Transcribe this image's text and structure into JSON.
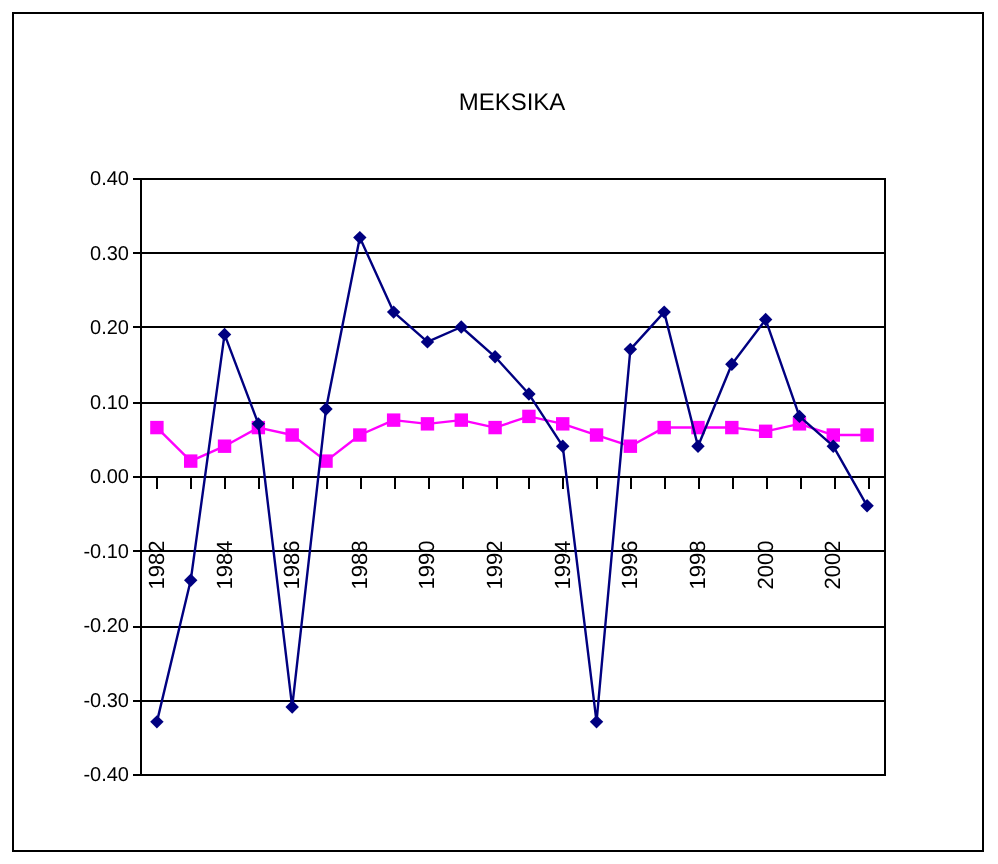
{
  "chart_data": {
    "type": "line",
    "title": "MEKSIKA",
    "categories": [
      "1982",
      null,
      "1984",
      null,
      "1986",
      null,
      "1988",
      null,
      "1990",
      null,
      "1992",
      null,
      "1994",
      null,
      "1996",
      null,
      "1998",
      null,
      "2000",
      null,
      "2002",
      null
    ],
    "series": [
      {
        "color": "#000080",
        "marker": "diamond",
        "values": [
          -0.33,
          -0.14,
          0.19,
          0.07,
          -0.31,
          0.09,
          0.32,
          0.22,
          0.18,
          0.2,
          0.16,
          0.11,
          0.04,
          -0.33,
          0.17,
          0.22,
          0.04,
          0.15,
          0.21,
          0.08,
          0.04,
          -0.04
        ]
      },
      {
        "color": "#ff00ff",
        "marker": "square",
        "values": [
          0.065,
          0.02,
          0.04,
          0.065,
          0.055,
          0.02,
          0.055,
          0.075,
          0.07,
          0.075,
          0.065,
          0.08,
          0.07,
          0.055,
          0.04,
          0.065,
          0.065,
          0.065,
          0.06,
          0.07,
          0.055,
          0.055
        ]
      }
    ],
    "ylim": [
      -0.4,
      0.4
    ],
    "yticks": [
      {
        "value": -0.4,
        "label": "-0.40"
      },
      {
        "value": -0.3,
        "label": "-0.30"
      },
      {
        "value": -0.2,
        "label": "-0.20"
      },
      {
        "value": -0.1,
        "label": "-0.10"
      },
      {
        "value": 0,
        "label": "0.00"
      },
      {
        "value": 0.1,
        "label": "0.10"
      },
      {
        "value": 0.2,
        "label": "0.20"
      },
      {
        "value": 0.3,
        "label": "0.30"
      },
      {
        "value": 0.4,
        "label": "0.40"
      }
    ],
    "grid": "y",
    "line_style": "solid"
  }
}
